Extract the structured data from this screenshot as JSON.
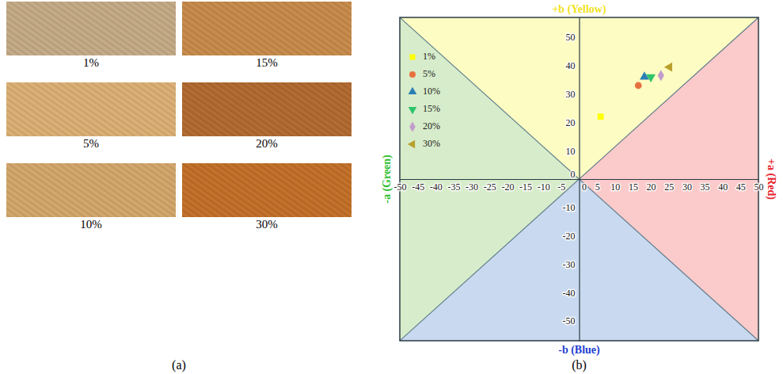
{
  "figure_a": {
    "label": "(a)",
    "swatches": [
      {
        "label": "1%",
        "color": "#c3a985"
      },
      {
        "label": "5%",
        "color": "#dbae74"
      },
      {
        "label": "10%",
        "color": "#d2a56a"
      },
      {
        "label": "15%",
        "color": "#c68a4a"
      },
      {
        "label": "20%",
        "color": "#b0692f"
      },
      {
        "label": "30%",
        "color": "#c26f28"
      }
    ]
  },
  "figure_b": {
    "label": "(b)"
  },
  "chart_data": {
    "type": "scatter",
    "xlim": [
      -50,
      50
    ],
    "ylim": [
      -57,
      57
    ],
    "xticks": [
      -50,
      -45,
      -40,
      -35,
      -30,
      -25,
      -20,
      -15,
      -10,
      -5,
      0,
      5,
      10,
      15,
      20,
      25,
      30,
      35,
      40,
      45,
      50
    ],
    "yticks": [
      -50,
      -40,
      -30,
      -20,
      -10,
      0,
      10,
      20,
      30,
      40,
      50
    ],
    "legend": "upper left",
    "annotations": [
      {
        "text": "+b (Yellow)",
        "side": "top",
        "color": "#f2e21c"
      },
      {
        "text": "-b (Blue)",
        "side": "bottom",
        "color": "#1f3fd0"
      },
      {
        "text": "-a (Green)",
        "side": "left",
        "color": "#2fbf2f"
      },
      {
        "text": "+a (Red)",
        "side": "right",
        "color": "#e8202a"
      }
    ],
    "series": [
      {
        "name": "1%",
        "color": "#ffff00",
        "marker": "square",
        "x": [
          6
        ],
        "values": [
          22
        ]
      },
      {
        "name": "5%",
        "color": "#e8703f",
        "marker": "circle",
        "x": [
          16.5
        ],
        "values": [
          33
        ]
      },
      {
        "name": "10%",
        "color": "#2a7fb4",
        "marker": "triangle",
        "x": [
          18.2
        ],
        "values": [
          36
        ]
      },
      {
        "name": "15%",
        "color": "#2ec46a",
        "marker": "triangle-down",
        "x": [
          20
        ],
        "values": [
          36
        ]
      },
      {
        "name": "20%",
        "color": "#c29ccc",
        "marker": "diamond",
        "x": [
          22.8
        ],
        "values": [
          36.5
        ]
      },
      {
        "name": "30%",
        "color": "#b9a12e",
        "marker": "triangle-left",
        "x": [
          25.2
        ],
        "values": [
          39.5
        ]
      }
    ]
  }
}
